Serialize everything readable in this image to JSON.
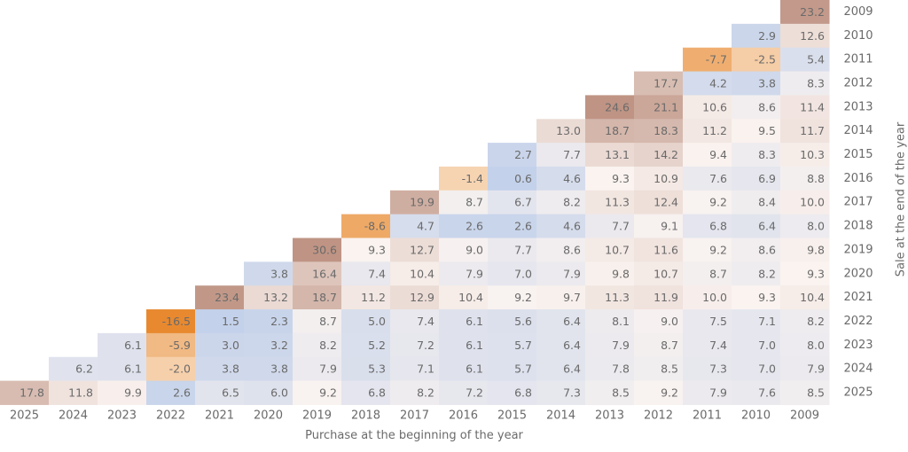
{
  "chart_data": {
    "type": "heatmap",
    "xlabel": "Purchase at the beginning of the year",
    "ylabel": "Sale at the end of the year",
    "x_categories": [
      "2025",
      "2024",
      "2023",
      "2022",
      "2021",
      "2020",
      "2019",
      "2018",
      "2017",
      "2016",
      "2015",
      "2014",
      "2013",
      "2012",
      "2011",
      "2010",
      "2009"
    ],
    "y_categories": [
      "2009",
      "2010",
      "2011",
      "2012",
      "2013",
      "2014",
      "2015",
      "2016",
      "2017",
      "2018",
      "2019",
      "2020",
      "2021",
      "2022",
      "2023",
      "2024",
      "2025"
    ],
    "rows_note": "each row lists values from purchase year = sale year down to purchase year 2009",
    "rows": [
      [
        23.2
      ],
      [
        2.9,
        12.6
      ],
      [
        -7.7,
        -2.5,
        5.4
      ],
      [
        17.7,
        4.2,
        3.8,
        8.3
      ],
      [
        24.6,
        21.1,
        10.6,
        8.6,
        11.4
      ],
      [
        13.0,
        18.7,
        18.3,
        11.2,
        9.5,
        11.7
      ],
      [
        2.7,
        7.7,
        13.1,
        14.2,
        9.4,
        8.3,
        10.3
      ],
      [
        -1.4,
        0.6,
        4.6,
        9.3,
        10.9,
        7.6,
        6.9,
        8.8
      ],
      [
        19.9,
        8.7,
        6.7,
        8.2,
        11.3,
        12.4,
        9.2,
        8.4,
        10.0
      ],
      [
        -8.6,
        4.7,
        2.6,
        2.6,
        4.6,
        7.7,
        9.1,
        6.8,
        6.4,
        8.0
      ],
      [
        30.6,
        9.3,
        12.7,
        9.0,
        7.7,
        8.6,
        10.7,
        11.6,
        9.2,
        8.6,
        9.8
      ],
      [
        3.8,
        16.4,
        7.4,
        10.4,
        7.9,
        7.0,
        7.9,
        9.8,
        10.7,
        8.7,
        8.2,
        9.3
      ],
      [
        23.4,
        13.2,
        18.7,
        11.2,
        12.9,
        10.4,
        9.2,
        9.7,
        11.3,
        11.9,
        10.0,
        9.3,
        10.4
      ],
      [
        -16.5,
        1.5,
        2.3,
        8.7,
        5.0,
        7.4,
        6.1,
        5.6,
        6.4,
        8.1,
        9.0,
        7.5,
        7.1,
        8.2
      ],
      [
        6.1,
        -5.9,
        3.0,
        3.2,
        8.2,
        5.2,
        7.2,
        6.1,
        5.7,
        6.4,
        7.9,
        8.7,
        7.4,
        7.0,
        8.0
      ],
      [
        6.2,
        6.1,
        -2.0,
        3.8,
        3.8,
        7.9,
        5.3,
        7.1,
        6.1,
        5.7,
        6.4,
        7.8,
        8.5,
        7.3,
        7.0,
        7.9
      ],
      [
        17.8,
        11.8,
        9.9,
        2.6,
        6.5,
        6.0,
        9.2,
        6.8,
        8.2,
        7.2,
        6.8,
        7.3,
        8.5,
        9.2,
        7.9,
        7.6,
        8.5
      ]
    ],
    "color_scale": {
      "negative": "#e8892f",
      "low": "#c3d1ea",
      "mid": "#faf3f0",
      "high": "#bf9484"
    },
    "grid": false,
    "legend": "none"
  }
}
